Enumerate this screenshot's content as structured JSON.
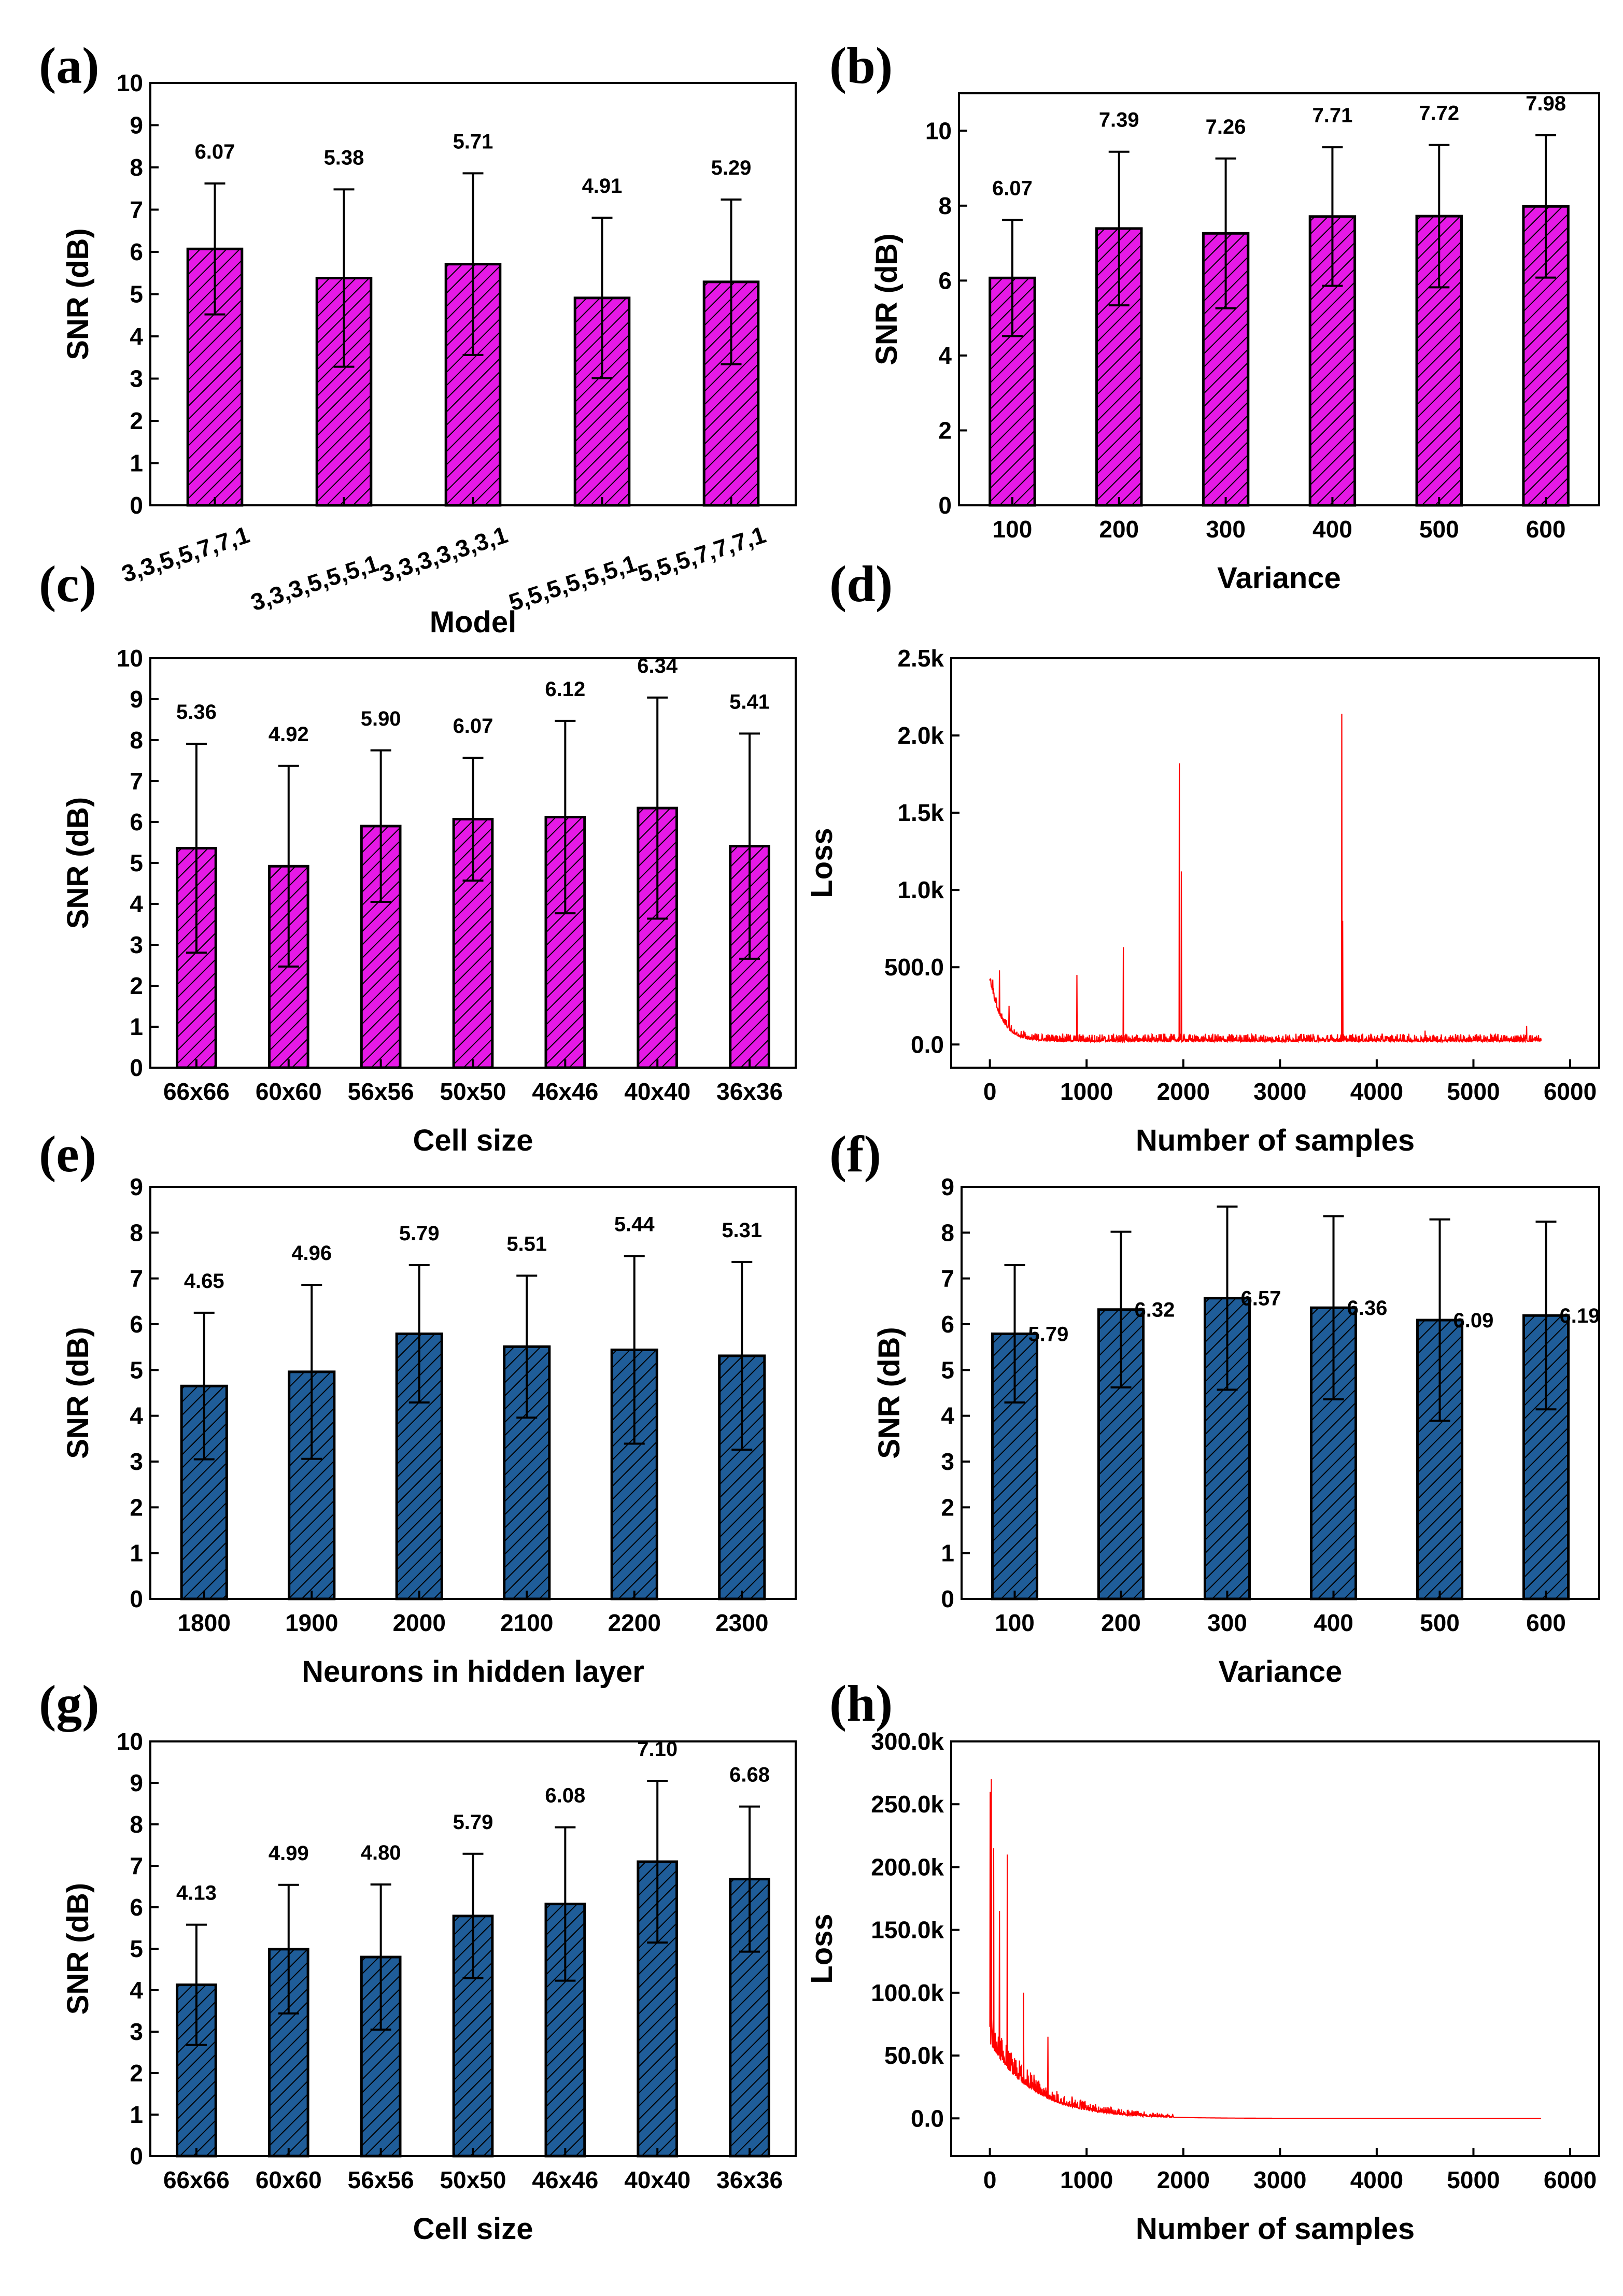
{
  "colors": {
    "magenta": "#e619e6",
    "blue": "#1f5d99",
    "loss": "#ff0000"
  },
  "chart_data": [
    {
      "id": "a",
      "label": "(a)",
      "type": "bar",
      "color": "magenta",
      "xlabel": "Model",
      "ylabel": "SNR (dB)",
      "ylim": [
        0,
        10
      ],
      "yticks": [
        0,
        1,
        2,
        3,
        4,
        5,
        6,
        7,
        8,
        9,
        10
      ],
      "rotate_xticks": true,
      "categories": [
        "3,3,5,5,7,7,1",
        "3,3,3,5,5,5,1",
        "3,3,3,3,3,3,1",
        "5,5,5,5,5,5,1",
        "5,5,5,7,7,7,1"
      ],
      "values": [
        6.07,
        5.38,
        5.71,
        4.91,
        5.29
      ],
      "errors": [
        1.55,
        2.1,
        2.15,
        1.9,
        1.95
      ],
      "data_labels": [
        "6.07",
        "5.38",
        "5.71",
        "4.91",
        "5.29"
      ]
    },
    {
      "id": "b",
      "label": "(b)",
      "type": "bar",
      "color": "magenta",
      "xlabel": "Variance",
      "ylabel": "SNR (dB)",
      "ylim": [
        0,
        11
      ],
      "yticks": [
        0,
        2,
        4,
        6,
        8,
        10
      ],
      "categories": [
        "100",
        "200",
        "300",
        "400",
        "500",
        "600"
      ],
      "values": [
        6.07,
        7.39,
        7.26,
        7.71,
        7.72,
        7.98
      ],
      "errors": [
        1.55,
        2.05,
        2.0,
        1.85,
        1.9,
        1.9
      ],
      "data_labels": [
        "6.07",
        "7.39",
        "7.26",
        "7.71",
        "7.72",
        "7.98"
      ]
    },
    {
      "id": "c",
      "label": "(c)",
      "type": "bar",
      "color": "magenta",
      "xlabel": "Cell size",
      "ylabel": "SNR (dB)",
      "ylim": [
        0,
        10
      ],
      "yticks": [
        0,
        1,
        2,
        3,
        4,
        5,
        6,
        7,
        8,
        9,
        10
      ],
      "categories": [
        "66x66",
        "60x60",
        "56x56",
        "50x50",
        "46x46",
        "40x40",
        "36x36"
      ],
      "values": [
        5.36,
        4.92,
        5.9,
        6.07,
        6.12,
        6.34,
        5.41
      ],
      "errors": [
        2.55,
        2.45,
        1.85,
        1.5,
        2.35,
        2.7,
        2.75
      ],
      "data_labels": [
        "5.36",
        "4.92",
        "5.90",
        "6.07",
        "6.12",
        "6.34",
        "5.41"
      ]
    },
    {
      "id": "d",
      "label": "(d)",
      "type": "line",
      "color": "loss",
      "xlabel": "Number of samples",
      "ylabel": "Loss",
      "xlim": [
        -400,
        6300
      ],
      "ylim": [
        -150,
        2500
      ],
      "xticks": [
        0,
        1000,
        2000,
        3000,
        4000,
        5000,
        6000
      ],
      "yticks": [
        0,
        500,
        1000,
        1500,
        2000,
        2500
      ],
      "ytick_labels": [
        "0.0",
        "500.0",
        "1.0k",
        "1.5k",
        "2.0k",
        "2.5k"
      ],
      "n_samples": 5700,
      "baseline": 20,
      "initial": 400,
      "decay": 120,
      "noise": 50,
      "spikes": [
        [
          30,
          420
        ],
        [
          100,
          480
        ],
        [
          200,
          250
        ],
        [
          900,
          450
        ],
        [
          1380,
          630
        ],
        [
          1960,
          1820
        ],
        [
          1980,
          1120
        ],
        [
          3640,
          2140
        ],
        [
          3650,
          800
        ],
        [
          4500,
          90
        ],
        [
          5550,
          120
        ]
      ]
    },
    {
      "id": "e",
      "label": "(e)",
      "type": "bar",
      "color": "blue",
      "xlabel": "Neurons in hidden layer",
      "ylabel": "SNR (dB)",
      "ylim": [
        0,
        9
      ],
      "yticks": [
        0,
        1,
        2,
        3,
        4,
        5,
        6,
        7,
        8,
        9
      ],
      "categories": [
        "1800",
        "1900",
        "2000",
        "2100",
        "2200",
        "2300"
      ],
      "values": [
        4.65,
        4.96,
        5.79,
        5.51,
        5.44,
        5.31
      ],
      "errors": [
        1.6,
        1.9,
        1.5,
        1.55,
        2.05,
        2.05
      ],
      "data_labels": [
        "4.65",
        "4.96",
        "5.79",
        "5.51",
        "5.44",
        "5.31"
      ]
    },
    {
      "id": "f",
      "label": "(f)",
      "type": "bar",
      "color": "blue",
      "xlabel": "Variance",
      "ylabel": "SNR (dB)",
      "ylim": [
        0,
        9
      ],
      "yticks": [
        0,
        1,
        2,
        3,
        4,
        5,
        6,
        7,
        8,
        9
      ],
      "label_right": true,
      "categories": [
        "100",
        "200",
        "300",
        "400",
        "500",
        "600"
      ],
      "values": [
        5.79,
        6.32,
        6.57,
        6.36,
        6.09,
        6.19
      ],
      "errors": [
        1.5,
        1.7,
        2.0,
        2.0,
        2.2,
        2.05
      ],
      "data_labels": [
        "5.79",
        "6.32",
        "6.57",
        "6.36",
        "6.09",
        "6.19"
      ]
    },
    {
      "id": "g",
      "label": "(g)",
      "type": "bar",
      "color": "blue",
      "xlabel": "Cell size",
      "ylabel": "SNR (dB)",
      "ylim": [
        0,
        10
      ],
      "yticks": [
        0,
        1,
        2,
        3,
        4,
        5,
        6,
        7,
        8,
        9,
        10
      ],
      "categories": [
        "66x66",
        "60x60",
        "56x56",
        "50x50",
        "46x46",
        "40x40",
        "36x36"
      ],
      "values": [
        4.13,
        4.99,
        4.8,
        5.79,
        6.08,
        7.1,
        6.68
      ],
      "errors": [
        1.45,
        1.55,
        1.75,
        1.5,
        1.85,
        1.95,
        1.75
      ],
      "data_labels": [
        "4.13",
        "4.99",
        "4.80",
        "5.79",
        "6.08",
        "7.10",
        "6.68"
      ]
    },
    {
      "id": "h",
      "label": "(h)",
      "type": "line",
      "color": "loss",
      "xlabel": "Number of samples",
      "ylabel": "Loss",
      "xlim": [
        -400,
        6300
      ],
      "ylim": [
        -30000,
        300000
      ],
      "xticks": [
        0,
        1000,
        2000,
        3000,
        4000,
        5000,
        6000
      ],
      "yticks": [
        0,
        50000,
        100000,
        150000,
        200000,
        250000,
        300000
      ],
      "ytick_labels": [
        "0.0",
        "50.0k",
        "100.0k",
        "150.0k",
        "200.0k",
        "250.0k",
        "300.0k"
      ],
      "n_samples": 5700,
      "baseline": 0,
      "initial": 60000,
      "decay": 450,
      "noise": 22000,
      "cutoff": 1900,
      "spikes": [
        [
          5,
          260000
        ],
        [
          15,
          270000
        ],
        [
          40,
          215000
        ],
        [
          100,
          165000
        ],
        [
          180,
          210000
        ],
        [
          350,
          100000
        ],
        [
          600,
          65000
        ]
      ]
    }
  ]
}
